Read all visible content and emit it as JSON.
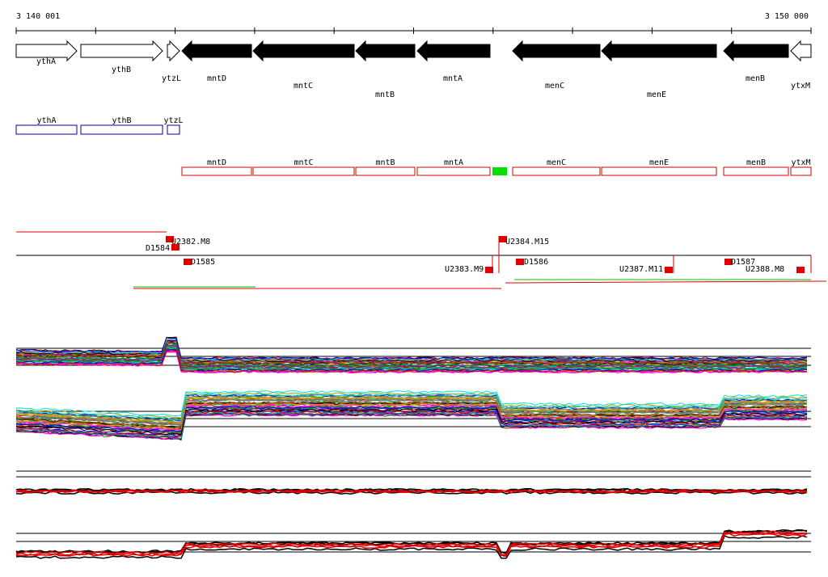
{
  "header": {
    "start": "3 140 001",
    "end": "3 150 000"
  },
  "genes": [
    {
      "label": "ythA"
    },
    {
      "label": "ythB"
    },
    {
      "label": "ytzL"
    },
    {
      "label": "mntD"
    },
    {
      "label": "mntC"
    },
    {
      "label": "mntB"
    },
    {
      "label": "mntA"
    },
    {
      "label": "menC"
    },
    {
      "label": "menE"
    },
    {
      "label": "menB"
    },
    {
      "label": "ytxM"
    }
  ],
  "blue_boxes": [
    {
      "label": "ythA"
    },
    {
      "label": "ythB"
    },
    {
      "label": "ytzL"
    }
  ],
  "red_boxes": [
    {
      "label": "mntD"
    },
    {
      "label": "mntC"
    },
    {
      "label": "mntB"
    },
    {
      "label": "mntA"
    },
    {
      "label": "menC"
    },
    {
      "label": "menE"
    },
    {
      "label": "menB"
    },
    {
      "label": "ytxM"
    }
  ],
  "features": [
    {
      "label": "D1584"
    },
    {
      "label": "U2382.M8"
    },
    {
      "label": "D1585"
    },
    {
      "label": "U2383.M9"
    },
    {
      "label": "U2384.M15"
    },
    {
      "label": "D1586"
    },
    {
      "label": "U2387.M11"
    },
    {
      "label": "D1587"
    },
    {
      "label": "U2388.M8"
    }
  ]
}
